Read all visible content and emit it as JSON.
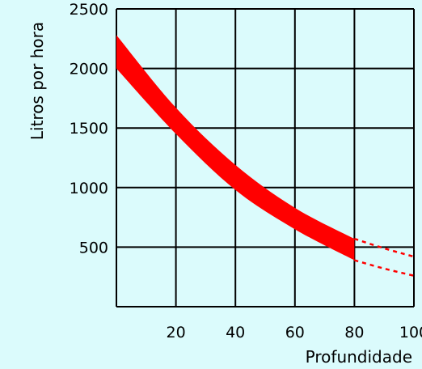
{
  "chart_data": {
    "type": "area",
    "xlabel": "Profundidade",
    "ylabel": "Litros por hora",
    "xlim": [
      0,
      100
    ],
    "ylim": [
      0,
      2500
    ],
    "x_tick_labels": [
      "20",
      "40",
      "60",
      "80",
      "100"
    ],
    "y_tick_labels": [
      "500",
      "1000",
      "1500",
      "2000",
      "2500"
    ],
    "grid": true,
    "band_color": "#ff0000",
    "series": [
      {
        "role": "upper",
        "style": "solid",
        "x": [
          0,
          20,
          40,
          60,
          80
        ],
        "y": [
          2280,
          1670,
          1190,
          830,
          570
        ]
      },
      {
        "role": "lower",
        "style": "solid",
        "x": [
          0,
          20,
          40,
          60,
          80
        ],
        "y": [
          2000,
          1450,
          980,
          650,
          390
        ]
      },
      {
        "role": "upper",
        "style": "dashed",
        "x": [
          80,
          90,
          100
        ],
        "y": [
          570,
          490,
          420
        ]
      },
      {
        "role": "lower",
        "style": "dashed",
        "x": [
          80,
          90,
          100
        ],
        "y": [
          390,
          320,
          260
        ]
      }
    ]
  }
}
